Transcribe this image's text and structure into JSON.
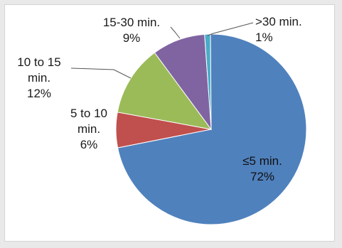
{
  "chart_data": {
    "type": "pie",
    "categories": [
      ">30 min.",
      "≤5 min.",
      "5 to 10 min.",
      "10 to 15 min.",
      "15-30 min."
    ],
    "values": [
      1,
      72,
      6,
      12,
      9
    ],
    "colors": [
      "#4bacc6",
      "#4f81bd",
      "#c0504d",
      "#9bbb59",
      "#8064a2"
    ],
    "labels": [
      {
        "lines": [
          ">30 min.",
          "1%"
        ]
      },
      {
        "lines": [
          "≤5 min.",
          "72%"
        ]
      },
      {
        "lines": [
          "5 to 10",
          "min.",
          "6%"
        ]
      },
      {
        "lines": [
          "10 to 15",
          "min.",
          "12%"
        ]
      },
      {
        "lines": [
          "15-30 min.",
          "9%"
        ]
      }
    ],
    "legend": "none"
  }
}
